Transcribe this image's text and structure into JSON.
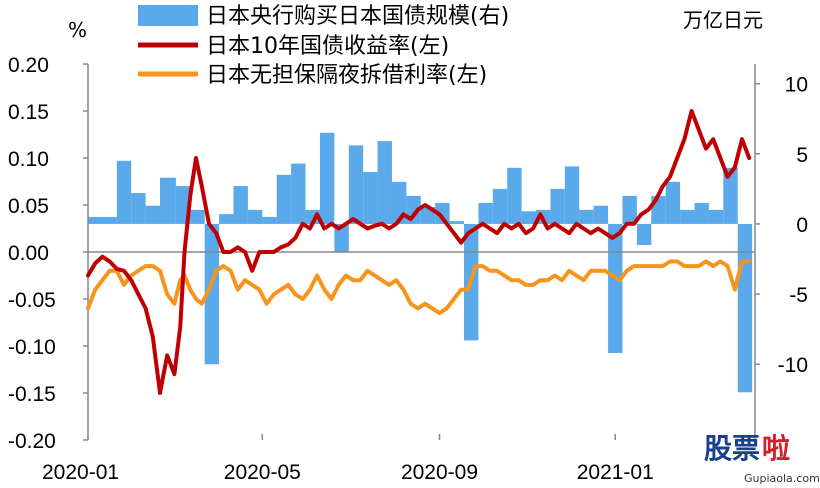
{
  "chart_data": {
    "type": "bar+line",
    "title": "",
    "left_axis": {
      "unit": "%",
      "ylim": [
        -0.2,
        0.2
      ],
      "ticks": [
        "0.20",
        "0.15",
        "0.10",
        "0.05",
        "0.00",
        "-0.05",
        "-0.10",
        "-0.15",
        "-0.20"
      ]
    },
    "right_axis": {
      "unit": "万亿日元",
      "ylim": [
        -15.4,
        11.4
      ],
      "ticks": [
        "10",
        "5",
        "0",
        "-5",
        "-10"
      ]
    },
    "x_ticks": [
      "2020-01",
      "2020-05",
      "2020-09",
      "2021-01"
    ],
    "legend_placement": "top",
    "bar_series": {
      "name": "日本央行购买日本国债规模(右)",
      "axis": "right",
      "color": "#5aa9ea",
      "x": [
        "2020-01-01",
        "2020-01-10",
        "2020-01-21",
        "2020-01-31",
        "2020-02-10",
        "2020-02-20",
        "2020-03-02",
        "2020-03-12",
        "2020-03-22",
        "2020-04-01",
        "2020-04-11",
        "2020-04-21",
        "2020-05-01",
        "2020-05-11",
        "2020-05-21",
        "2020-05-31",
        "2020-06-10",
        "2020-06-20",
        "2020-06-30",
        "2020-07-10",
        "2020-07-20",
        "2020-07-30",
        "2020-08-09",
        "2020-08-19",
        "2020-08-29",
        "2020-09-08",
        "2020-09-18",
        "2020-09-28",
        "2020-10-08",
        "2020-10-18",
        "2020-10-28",
        "2020-11-07",
        "2020-11-17",
        "2020-11-27",
        "2020-12-07",
        "2020-12-17",
        "2020-12-27",
        "2021-01-06",
        "2021-01-16",
        "2021-01-26",
        "2021-02-05",
        "2021-02-15",
        "2021-02-25",
        "2021-03-07",
        "2021-03-17",
        "2021-03-27"
      ],
      "values": [
        0.5,
        0.5,
        4.5,
        2.2,
        1.3,
        3.3,
        2.7,
        1.0,
        -10.0,
        0.7,
        2.7,
        1.0,
        0.5,
        3.5,
        4.3,
        1.0,
        6.5,
        -2.0,
        5.6,
        3.7,
        5.9,
        3.0,
        2.0,
        1.2,
        1.5,
        0.2,
        -8.3,
        1.5,
        2.5,
        4.0,
        0.9,
        1.0,
        2.5,
        4.1,
        1.0,
        1.3,
        -9.2,
        2.0,
        -1.5,
        2.0,
        3.0,
        1.0,
        1.5,
        1.0,
        4.0,
        -12.0
      ]
    },
    "line_series": [
      {
        "name": "日本10年国债收益率(左)",
        "axis": "left",
        "color": "#c00000",
        "x": [
          "2020-01-01",
          "2020-01-06",
          "2020-01-11",
          "2020-01-16",
          "2020-01-21",
          "2020-01-26",
          "2020-01-31",
          "2020-02-05",
          "2020-02-10",
          "2020-02-15",
          "2020-02-20",
          "2020-02-25",
          "2020-03-01",
          "2020-03-05",
          "2020-03-08",
          "2020-03-12",
          "2020-03-16",
          "2020-03-20",
          "2020-03-25",
          "2020-03-30",
          "2020-04-04",
          "2020-04-09",
          "2020-04-14",
          "2020-04-19",
          "2020-04-24",
          "2020-04-29",
          "2020-05-04",
          "2020-05-09",
          "2020-05-14",
          "2020-05-19",
          "2020-05-24",
          "2020-05-29",
          "2020-06-03",
          "2020-06-08",
          "2020-06-13",
          "2020-06-18",
          "2020-06-23",
          "2020-06-28",
          "2020-07-03",
          "2020-07-08",
          "2020-07-13",
          "2020-07-18",
          "2020-07-23",
          "2020-07-28",
          "2020-08-02",
          "2020-08-07",
          "2020-08-12",
          "2020-08-17",
          "2020-08-22",
          "2020-08-27",
          "2020-09-01",
          "2020-09-06",
          "2020-09-11",
          "2020-09-16",
          "2020-09-21",
          "2020-09-26",
          "2020-10-01",
          "2020-10-06",
          "2020-10-11",
          "2020-10-16",
          "2020-10-21",
          "2020-10-26",
          "2020-10-31",
          "2020-11-05",
          "2020-11-10",
          "2020-11-15",
          "2020-11-20",
          "2020-11-25",
          "2020-11-30",
          "2020-12-05",
          "2020-12-10",
          "2020-12-15",
          "2020-12-20",
          "2020-12-25",
          "2020-12-30",
          "2021-01-04",
          "2021-01-09",
          "2021-01-14",
          "2021-01-19",
          "2021-01-24",
          "2021-01-29",
          "2021-02-03",
          "2021-02-08",
          "2021-02-13",
          "2021-02-18",
          "2021-02-23",
          "2021-02-28",
          "2021-03-05",
          "2021-03-10",
          "2021-03-15",
          "2021-03-20",
          "2021-03-25",
          "2021-03-30",
          "2021-04-04"
        ],
        "values": [
          -0.025,
          -0.012,
          -0.005,
          -0.01,
          -0.018,
          -0.02,
          -0.03,
          -0.045,
          -0.06,
          -0.09,
          -0.15,
          -0.11,
          -0.13,
          -0.08,
          0.0,
          0.06,
          0.1,
          0.07,
          0.03,
          0.02,
          0.0,
          0.0,
          0.005,
          0.0,
          -0.02,
          0.0,
          0.0,
          0.0,
          0.005,
          0.008,
          0.015,
          0.03,
          0.025,
          0.04,
          0.025,
          0.03,
          0.025,
          0.03,
          0.035,
          0.03,
          0.025,
          0.028,
          0.03,
          0.025,
          0.03,
          0.04,
          0.035,
          0.045,
          0.05,
          0.045,
          0.04,
          0.03,
          0.02,
          0.01,
          0.02,
          0.025,
          0.03,
          0.025,
          0.02,
          0.03,
          0.025,
          0.03,
          0.02,
          0.025,
          0.04,
          0.025,
          0.03,
          0.025,
          0.02,
          0.03,
          0.025,
          0.02,
          0.025,
          0.02,
          0.015,
          0.02,
          0.03,
          0.03,
          0.04,
          0.045,
          0.055,
          0.07,
          0.08,
          0.1,
          0.12,
          0.15,
          0.13,
          0.11,
          0.12,
          0.1,
          0.08,
          0.09,
          0.12,
          0.1
        ]
      },
      {
        "name": "日本无担保隔夜拆借利率(左)",
        "axis": "left",
        "color": "#f7941d",
        "x": [
          "2020-01-01",
          "2020-01-06",
          "2020-01-11",
          "2020-01-16",
          "2020-01-21",
          "2020-01-26",
          "2020-01-31",
          "2020-02-05",
          "2020-02-10",
          "2020-02-15",
          "2020-02-20",
          "2020-02-25",
          "2020-03-01",
          "2020-03-05",
          "2020-03-08",
          "2020-03-12",
          "2020-03-16",
          "2020-03-20",
          "2020-03-25",
          "2020-03-30",
          "2020-04-04",
          "2020-04-09",
          "2020-04-14",
          "2020-04-19",
          "2020-04-24",
          "2020-04-29",
          "2020-05-04",
          "2020-05-09",
          "2020-05-14",
          "2020-05-19",
          "2020-05-24",
          "2020-05-29",
          "2020-06-03",
          "2020-06-08",
          "2020-06-13",
          "2020-06-18",
          "2020-06-23",
          "2020-06-28",
          "2020-07-03",
          "2020-07-08",
          "2020-07-13",
          "2020-07-18",
          "2020-07-23",
          "2020-07-28",
          "2020-08-02",
          "2020-08-07",
          "2020-08-12",
          "2020-08-17",
          "2020-08-22",
          "2020-08-27",
          "2020-09-01",
          "2020-09-06",
          "2020-09-11",
          "2020-09-16",
          "2020-09-21",
          "2020-09-26",
          "2020-10-01",
          "2020-10-06",
          "2020-10-11",
          "2020-10-16",
          "2020-10-21",
          "2020-10-26",
          "2020-10-31",
          "2020-11-05",
          "2020-11-10",
          "2020-11-15",
          "2020-11-20",
          "2020-11-25",
          "2020-11-30",
          "2020-12-05",
          "2020-12-10",
          "2020-12-15",
          "2020-12-20",
          "2020-12-25",
          "2020-12-30",
          "2021-01-04",
          "2021-01-09",
          "2021-01-14",
          "2021-01-19",
          "2021-01-24",
          "2021-01-29",
          "2021-02-03",
          "2021-02-08",
          "2021-02-13",
          "2021-02-18",
          "2021-02-23",
          "2021-02-28",
          "2021-03-05",
          "2021-03-10",
          "2021-03-15",
          "2021-03-20",
          "2021-03-25",
          "2021-03-30",
          "2021-04-04"
        ],
        "values": [
          -0.06,
          -0.04,
          -0.03,
          -0.02,
          -0.02,
          -0.035,
          -0.025,
          -0.02,
          -0.015,
          -0.015,
          -0.02,
          -0.045,
          -0.055,
          -0.03,
          -0.025,
          -0.04,
          -0.05,
          -0.055,
          -0.04,
          -0.02,
          -0.015,
          -0.02,
          -0.04,
          -0.03,
          -0.035,
          -0.04,
          -0.055,
          -0.045,
          -0.04,
          -0.035,
          -0.045,
          -0.05,
          -0.04,
          -0.025,
          -0.04,
          -0.05,
          -0.035,
          -0.025,
          -0.03,
          -0.03,
          -0.02,
          -0.025,
          -0.03,
          -0.035,
          -0.03,
          -0.04,
          -0.055,
          -0.06,
          -0.055,
          -0.06,
          -0.065,
          -0.06,
          -0.05,
          -0.04,
          -0.04,
          -0.015,
          -0.015,
          -0.02,
          -0.02,
          -0.025,
          -0.03,
          -0.03,
          -0.035,
          -0.035,
          -0.03,
          -0.03,
          -0.025,
          -0.03,
          -0.02,
          -0.025,
          -0.03,
          -0.02,
          -0.02,
          -0.02,
          -0.025,
          -0.03,
          -0.02,
          -0.015,
          -0.015,
          -0.015,
          -0.015,
          -0.015,
          -0.01,
          -0.01,
          -0.015,
          -0.015,
          -0.015,
          -0.01,
          -0.015,
          -0.01,
          -0.015,
          -0.04,
          -0.01,
          -0.01
        ]
      }
    ],
    "grid": false
  },
  "watermark": {
    "text": "股票",
    "accent": "啦",
    "url": "Gupiaola.com"
  }
}
